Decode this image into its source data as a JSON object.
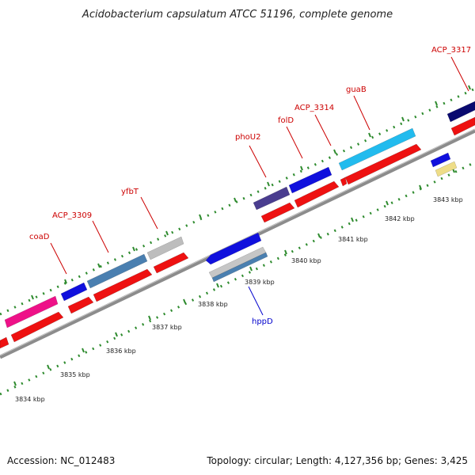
{
  "title": "Acidobacterium capsulatum ATCC 51196, complete genome",
  "footer": {
    "accession": "Accession: NC_012483",
    "topology": "Topology: circular; Length: 4,127,356 bp; Genes: 3,425"
  },
  "colors": {
    "backbone": "#8c8c8c",
    "tick": "#2e8b2e",
    "label_forward": "#cc0000",
    "label_reverse": "#0000cc",
    "cds": "#ee1111"
  },
  "scale_labels": [
    "3834 kbp",
    "3835 kbp",
    "3836 kbp",
    "3837 kbp",
    "3838 kbp",
    "3839 kbp",
    "3840 kbp",
    "3841 kbp",
    "3842 kbp",
    "3843 kbp"
  ],
  "gene_labels": [
    {
      "text": "coaD",
      "strand": "forward"
    },
    {
      "text": "ACP_3309",
      "strand": "forward"
    },
    {
      "text": "yfbT",
      "strand": "forward"
    },
    {
      "text": "phoU2",
      "strand": "forward"
    },
    {
      "text": "folD",
      "strand": "forward"
    },
    {
      "text": "ACP_3314",
      "strand": "forward"
    },
    {
      "text": "guaB",
      "strand": "forward"
    },
    {
      "text": "ACP_3317",
      "strand": "forward"
    },
    {
      "text": "hppD",
      "strand": "reverse"
    }
  ]
}
